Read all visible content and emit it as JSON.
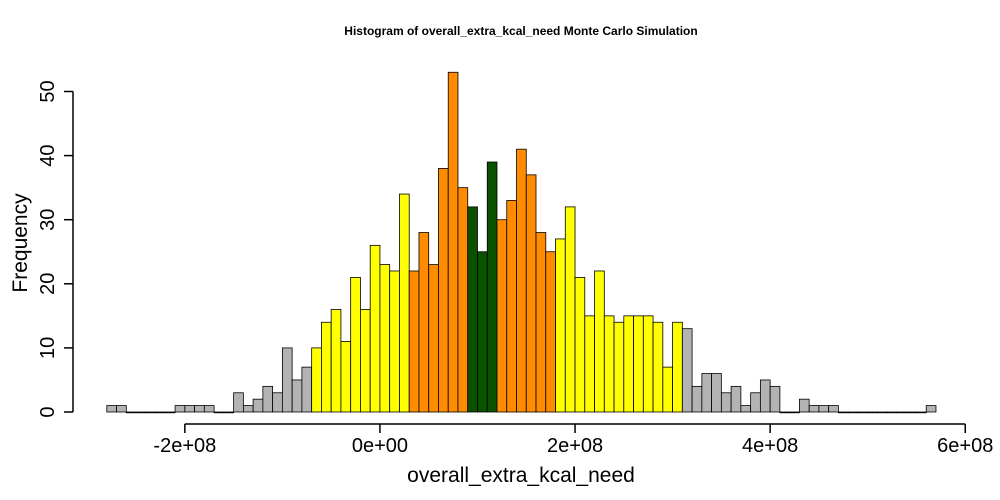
{
  "chart_data": {
    "type": "bar",
    "title": "Histogram of  overall_extra_kcal_need  Monte Carlo Simulation",
    "xlabel": "overall_extra_kcal_need",
    "ylabel": "Frequency",
    "bin_width": 10000000,
    "xlim": [
      -280000000,
      570000000
    ],
    "ylim": [
      0,
      53
    ],
    "x_ticks": [
      -200000000,
      0,
      200000000,
      400000000,
      600000000
    ],
    "x_tick_labels": [
      "-2e+08",
      "0e+00",
      "2e+08",
      "4e+08",
      "6e+08"
    ],
    "y_ticks": [
      0,
      10,
      20,
      30,
      40,
      50
    ],
    "y_tick_labels": [
      "0",
      "10",
      "20",
      "30",
      "40",
      "50"
    ],
    "grid": false,
    "colors": {
      "outer": "#b3b3b3",
      "mid": "#ffff00",
      "inner": "#ff8c00",
      "center": "#0b5200",
      "border": "#000000"
    },
    "bin_starts": [
      -280000000,
      -270000000,
      -260000000,
      -250000000,
      -240000000,
      -230000000,
      -220000000,
      -210000000,
      -200000000,
      -190000000,
      -180000000,
      -170000000,
      -160000000,
      -150000000,
      -140000000,
      -130000000,
      -120000000,
      -110000000,
      -100000000,
      -90000000,
      -80000000,
      -70000000,
      -60000000,
      -50000000,
      -40000000,
      -30000000,
      -20000000,
      -10000000,
      0,
      10000000,
      20000000,
      30000000,
      40000000,
      50000000,
      60000000,
      70000000,
      80000000,
      90000000,
      100000000,
      110000000,
      120000000,
      130000000,
      140000000,
      150000000,
      160000000,
      170000000,
      180000000,
      190000000,
      200000000,
      210000000,
      220000000,
      230000000,
      240000000,
      250000000,
      260000000,
      270000000,
      280000000,
      290000000,
      300000000,
      310000000,
      320000000,
      330000000,
      340000000,
      350000000,
      360000000,
      370000000,
      380000000,
      390000000,
      400000000,
      410000000,
      420000000,
      430000000,
      440000000,
      450000000,
      460000000,
      470000000,
      480000000,
      490000000,
      500000000,
      510000000,
      520000000,
      530000000,
      540000000,
      550000000,
      560000000
    ],
    "counts": [
      1,
      1,
      0,
      0,
      0,
      0,
      0,
      1,
      1,
      1,
      1,
      0,
      0,
      3,
      1,
      2,
      4,
      3,
      10,
      5,
      7,
      10,
      14,
      16,
      11,
      21,
      16,
      26,
      23,
      22,
      34,
      22,
      28,
      23,
      38,
      53,
      35,
      32,
      25,
      39,
      30,
      33,
      41,
      37,
      28,
      25,
      27,
      32,
      21,
      15,
      22,
      15,
      14,
      15,
      15,
      15,
      14,
      7,
      14,
      13,
      4,
      6,
      6,
      3,
      4,
      1,
      3,
      5,
      4,
      0,
      0,
      2,
      1,
      1,
      1,
      0,
      0,
      0,
      0,
      0,
      0,
      0,
      0,
      0,
      1
    ],
    "groups": [
      "outer",
      "outer",
      "outer",
      "outer",
      "outer",
      "outer",
      "outer",
      "outer",
      "outer",
      "outer",
      "outer",
      "outer",
      "outer",
      "outer",
      "outer",
      "outer",
      "outer",
      "outer",
      "outer",
      "outer",
      "outer",
      "mid",
      "mid",
      "mid",
      "mid",
      "mid",
      "mid",
      "mid",
      "mid",
      "mid",
      "mid",
      "inner",
      "inner",
      "inner",
      "inner",
      "inner",
      "inner",
      "center",
      "center",
      "center",
      "inner",
      "inner",
      "inner",
      "inner",
      "inner",
      "inner",
      "mid",
      "mid",
      "mid",
      "mid",
      "mid",
      "mid",
      "mid",
      "mid",
      "mid",
      "mid",
      "mid",
      "mid",
      "mid",
      "outer",
      "outer",
      "outer",
      "outer",
      "outer",
      "outer",
      "outer",
      "outer",
      "outer",
      "outer",
      "outer",
      "outer",
      "outer",
      "outer",
      "outer",
      "outer",
      "outer",
      "outer",
      "outer",
      "outer",
      "outer",
      "outer",
      "outer",
      "outer",
      "outer",
      "outer"
    ]
  }
}
